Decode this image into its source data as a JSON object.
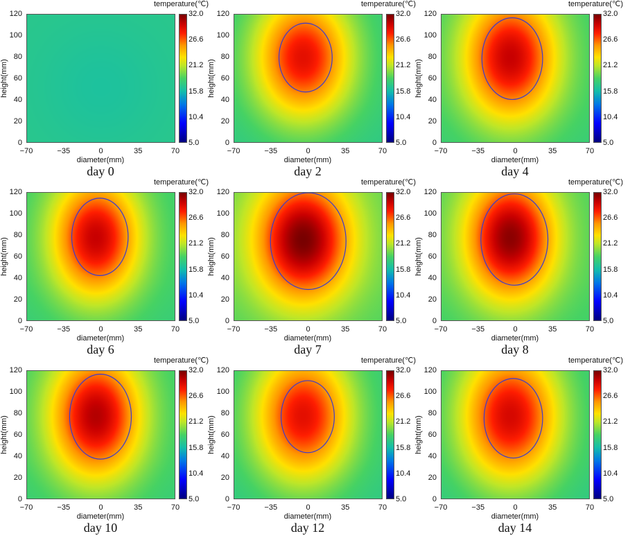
{
  "chart_data": {
    "type": "heatmap",
    "colorbar": {
      "title": "temperature(℃)",
      "ticks": [
        "32.0",
        "26.6",
        "21.2",
        "15.8",
        "10.4",
        "5.0"
      ],
      "range": [
        5.0,
        32.0
      ]
    },
    "xlabel": "diameter(mm)",
    "ylabel": "height(mm)",
    "xticks": [
      "−70",
      "−35",
      "0",
      "35",
      "70"
    ],
    "xtick_values": [
      -70,
      -35,
      0,
      35,
      70
    ],
    "yticks": [
      "0",
      "20",
      "40",
      "60",
      "80",
      "100",
      "120"
    ],
    "ytick_values": [
      0,
      20,
      40,
      60,
      80,
      100,
      120
    ],
    "xlim": [
      -70,
      70
    ],
    "ylim": [
      0,
      120
    ],
    "contour_color": "#3a3ad0",
    "panels": [
      {
        "caption": "day 0",
        "ambient": 17.0,
        "peak": 16.3,
        "hotspot": [
          0,
          52
        ],
        "contour": null
      },
      {
        "caption": "day 2",
        "ambient": 17.5,
        "peak": 29.0,
        "hotspot": [
          -5,
          80
        ],
        "contour": {
          "x": [
            -28,
            22
          ],
          "y": [
            48,
            112
          ]
        }
      },
      {
        "caption": "day 4",
        "ambient": 18.0,
        "peak": 30.0,
        "hotspot": [
          -5,
          80
        ],
        "contour": {
          "x": [
            -32,
            25
          ],
          "y": [
            41,
            117
          ]
        }
      },
      {
        "caption": "day 6",
        "ambient": 18.0,
        "peak": 30.0,
        "hotspot": [
          -5,
          78
        ],
        "contour": {
          "x": [
            -28,
            25
          ],
          "y": [
            43,
            115
          ]
        }
      },
      {
        "caption": "day 7",
        "ambient": 19.0,
        "peak": 32.0,
        "hotspot": [
          -5,
          76
        ],
        "contour": {
          "x": [
            -36,
            35
          ],
          "y": [
            30,
            120
          ]
        }
      },
      {
        "caption": "day 8",
        "ambient": 18.5,
        "peak": 31.5,
        "hotspot": [
          -5,
          78
        ],
        "contour": {
          "x": [
            -33,
            30
          ],
          "y": [
            34,
            119
          ]
        }
      },
      {
        "caption": "day 10",
        "ambient": 18.0,
        "peak": 30.5,
        "hotspot": [
          -5,
          78
        ],
        "contour": {
          "x": [
            -30,
            28
          ],
          "y": [
            38,
            117
          ]
        }
      },
      {
        "caption": "day 12",
        "ambient": 17.5,
        "peak": 29.0,
        "hotspot": [
          -5,
          78
        ],
        "contour": {
          "x": [
            -26,
            24
          ],
          "y": [
            44,
            111
          ]
        }
      },
      {
        "caption": "day 14",
        "ambient": 17.5,
        "peak": 29.5,
        "hotspot": [
          -5,
          78
        ],
        "contour": {
          "x": [
            -30,
            25
          ],
          "y": [
            39,
            113
          ]
        }
      }
    ]
  }
}
